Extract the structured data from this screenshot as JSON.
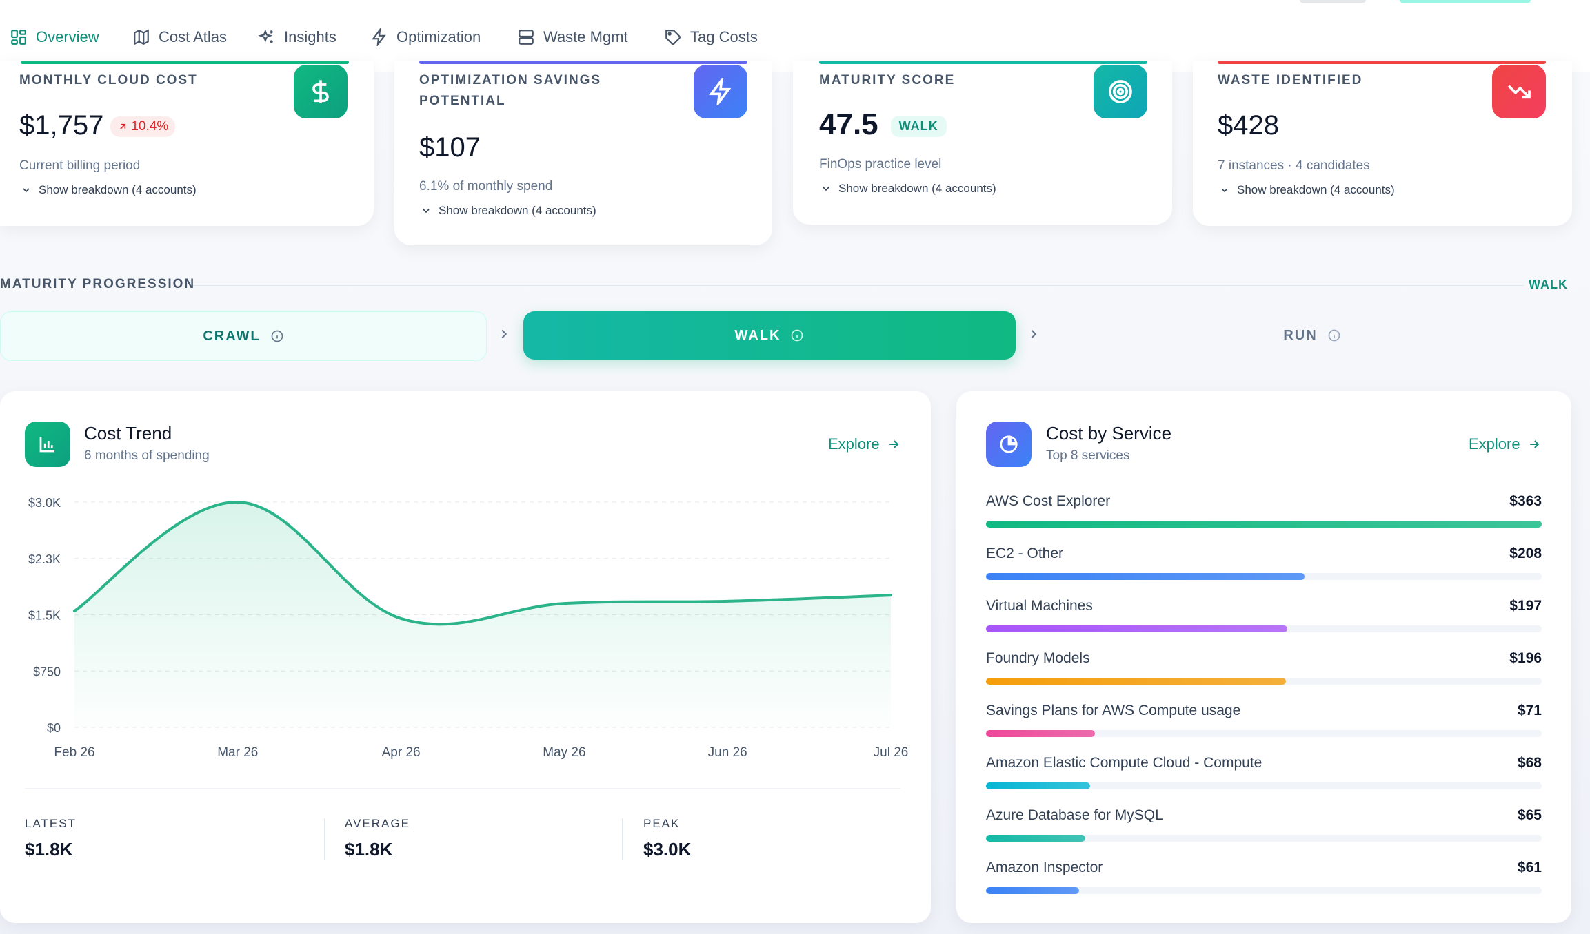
{
  "nav": {
    "tabs": [
      {
        "label": "Overview",
        "icon": "grid-icon",
        "active": true
      },
      {
        "label": "Cost Atlas",
        "icon": "map-icon"
      },
      {
        "label": "Insights",
        "icon": "sparkles-icon"
      },
      {
        "label": "Optimization",
        "icon": "bolt-icon"
      },
      {
        "label": "Waste Mgmt",
        "icon": "server-icon"
      },
      {
        "label": "Tag Costs",
        "icon": "tag-icon"
      }
    ]
  },
  "kpis": {
    "monthly": {
      "label": "MONTHLY CLOUD COST",
      "value": "$1,757",
      "delta": "10.4%",
      "sub": "Current billing period",
      "breakdown": "Show breakdown (4 accounts)",
      "accent": "#10b981",
      "icon": "dollar-icon"
    },
    "savings": {
      "label_line1": "OPTIMIZATION SAVINGS",
      "label_line2": "POTENTIAL",
      "value": "$107",
      "sub": "6.1% of monthly spend",
      "breakdown": "Show breakdown (4 accounts)",
      "accent": "#6366f1",
      "icon": "bolt-icon"
    },
    "maturity": {
      "label": "MATURITY SCORE",
      "value": "47.5",
      "badge": "WALK",
      "sub": "FinOps practice level",
      "breakdown": "Show breakdown (4 accounts)",
      "accent": "#14b8a6",
      "icon": "target-icon"
    },
    "waste": {
      "label": "WASTE IDENTIFIED",
      "value": "$428",
      "sub": "7 instances · 4 candidates",
      "breakdown": "Show breakdown (4 accounts)",
      "accent": "#ef4444",
      "icon": "trending-down-icon"
    }
  },
  "maturity": {
    "label": "MATURITY PROGRESSION",
    "current": "WALK",
    "stages": [
      {
        "label": "CRAWL"
      },
      {
        "label": "WALK",
        "active": true
      },
      {
        "label": "RUN"
      }
    ]
  },
  "cost_trend": {
    "title": "Cost Trend",
    "subtitle": "6 months of spending",
    "explore": "Explore",
    "stats": [
      {
        "label": "LATEST",
        "value": "$1.8K"
      },
      {
        "label": "AVERAGE",
        "value": "$1.8K"
      },
      {
        "label": "PEAK",
        "value": "$3.0K"
      }
    ]
  },
  "chart_data": {
    "type": "area",
    "x": [
      "Feb 26",
      "Mar 26",
      "Apr 26",
      "May 26",
      "Jun 26",
      "Jul 26"
    ],
    "values": [
      1550,
      3000,
      1450,
      1650,
      1680,
      1760
    ],
    "y_ticks": [
      "$0",
      "$750",
      "$1.5K",
      "$2.3K",
      "$3.0K"
    ],
    "ylim": [
      0,
      3000
    ],
    "grid": true,
    "color": "#2bb389"
  },
  "cost_by_service": {
    "title": "Cost by Service",
    "subtitle": "Top 8 services",
    "explore": "Explore",
    "items": [
      {
        "name": "AWS Cost Explorer",
        "value": "$363",
        "amount": 363,
        "color": "#10b981"
      },
      {
        "name": "EC2 - Other",
        "value": "$208",
        "amount": 208,
        "color": "#3b82f6"
      },
      {
        "name": "Virtual Machines",
        "value": "$197",
        "amount": 197,
        "color": "#a855f7"
      },
      {
        "name": "Foundry Models",
        "value": "$196",
        "amount": 196,
        "color": "#f59e0b"
      },
      {
        "name": "Savings Plans for AWS Compute usage",
        "value": "$71",
        "amount": 71,
        "color": "#ec4899"
      },
      {
        "name": "Amazon Elastic Compute Cloud - Compute",
        "value": "$68",
        "amount": 68,
        "color": "#06b6d4"
      },
      {
        "name": "Azure Database for MySQL",
        "value": "$65",
        "amount": 65,
        "color": "#14b8a6"
      },
      {
        "name": "Amazon Inspector",
        "value": "$61",
        "amount": 61,
        "color": "#3b82f6"
      }
    ]
  }
}
